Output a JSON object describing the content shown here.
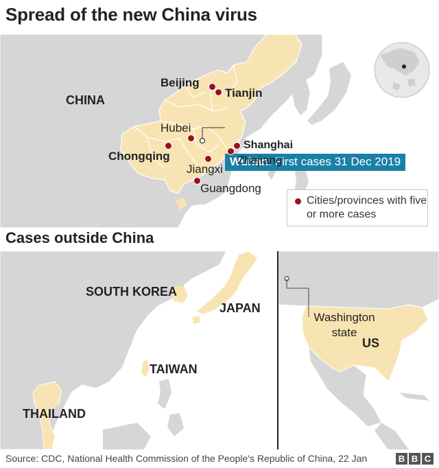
{
  "title": "Spread of the new China virus",
  "subtitle": "Cases outside China",
  "colors": {
    "land": "#d6d6d6",
    "water": "#ffffff",
    "affected": "#f8e4b3",
    "dot": "#9b111e",
    "callout": "#1a80a6",
    "border": "#ffffff"
  },
  "main_map": {
    "country_label": "CHINA",
    "cities": [
      {
        "name": "Beijing",
        "style": "bold"
      },
      {
        "name": "Tianjin",
        "style": "bold"
      },
      {
        "name": "Hubei",
        "style": "regular"
      },
      {
        "name": "Chongqing",
        "style": "bold"
      },
      {
        "name": "Shanghai",
        "style": "bold"
      },
      {
        "name": "Zhejiang",
        "style": "regular"
      },
      {
        "name": "Jiangxi",
        "style": "regular"
      },
      {
        "name": "Guangdong",
        "style": "regular"
      }
    ],
    "callout": {
      "city": "Wuhan",
      "text": ": First cases 31 Dec 2019"
    },
    "legend": {
      "label": "Cities/provinces with five or more cases",
      "icon": "red-dot"
    },
    "locator": {
      "icon": "globe-locator-icon"
    }
  },
  "outside_map_asia": {
    "labels": [
      "SOUTH KOREA",
      "JAPAN",
      "TAIWAN",
      "THAILAND"
    ]
  },
  "outside_map_us": {
    "state_label": "Washington state",
    "country_label": "US"
  },
  "footer": {
    "source": "Source: CDC, National Health Commission of the People's Republic of China, 22 Jan",
    "logo_letters": [
      "B",
      "B",
      "C"
    ]
  }
}
